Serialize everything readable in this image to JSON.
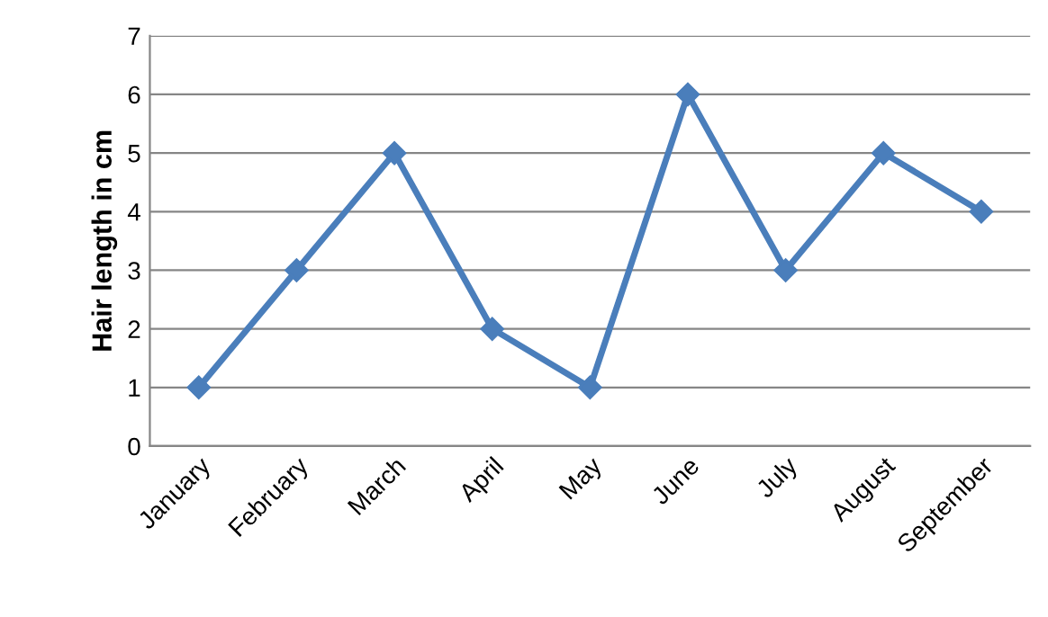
{
  "chart_data": {
    "type": "line",
    "ylabel": "Hair length in cm",
    "categories": [
      "January",
      "February",
      "March",
      "April",
      "May",
      "June",
      "July",
      "August",
      "September"
    ],
    "series": [
      {
        "color": "#4a7ebb",
        "values": [
          1,
          3,
          5,
          2,
          1,
          6,
          3,
          5,
          4
        ]
      }
    ],
    "ylim": [
      0,
      7
    ],
    "yticks": [
      0,
      1,
      2,
      3,
      4,
      5,
      6,
      7
    ],
    "grid": "y",
    "marker": "diamond",
    "line_style": "solid"
  }
}
